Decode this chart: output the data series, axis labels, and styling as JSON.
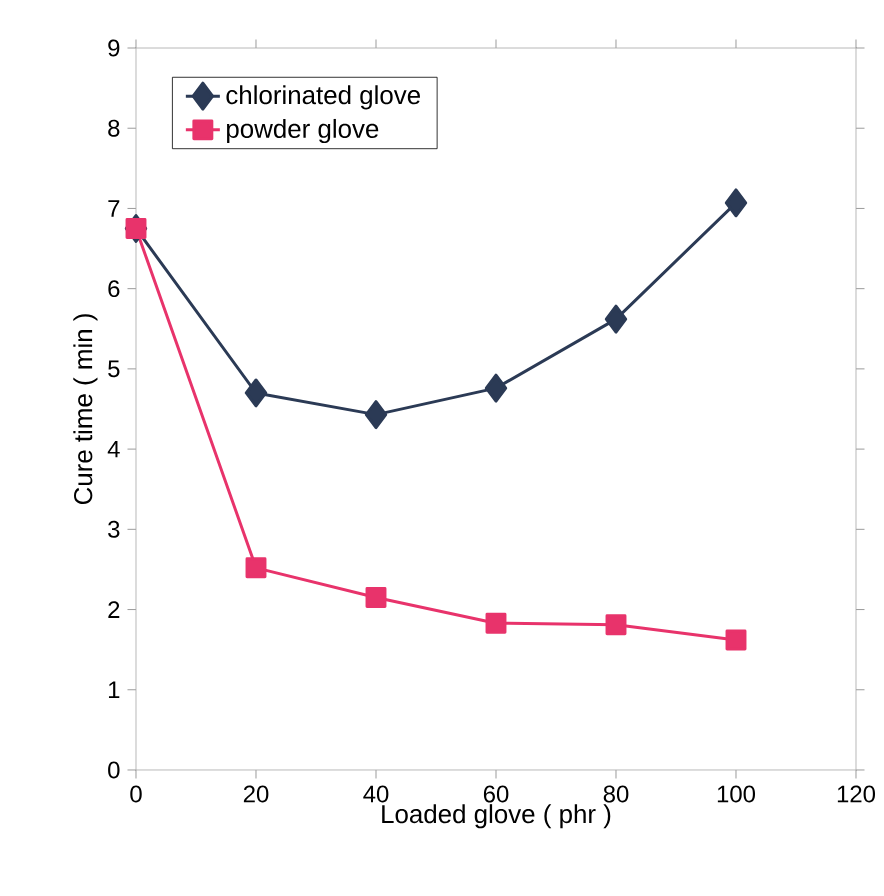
{
  "chart_data": {
    "type": "line",
    "xlabel": "Loaded glove ( phr )",
    "ylabel": "Cure time ( min )",
    "x": [
      0,
      20,
      40,
      60,
      80,
      100
    ],
    "series": [
      {
        "name": "chlorinated glove",
        "color": "#2b3a55",
        "marker": "diamond",
        "values": [
          6.75,
          4.7,
          4.43,
          4.76,
          5.62,
          7.07
        ]
      },
      {
        "name": "powder glove",
        "color": "#e8336b",
        "marker": "square",
        "values": [
          6.75,
          2.52,
          2.15,
          1.83,
          1.81,
          1.62
        ]
      }
    ],
    "xlim": [
      0,
      120
    ],
    "xticks": [
      0,
      20,
      40,
      60,
      80,
      100,
      120
    ],
    "ylim": [
      0,
      9
    ],
    "yticks": [
      0,
      1,
      2,
      3,
      4,
      5,
      6,
      7,
      8,
      9
    ],
    "grid": false,
    "legend": "top left",
    "line_style": "solid"
  }
}
